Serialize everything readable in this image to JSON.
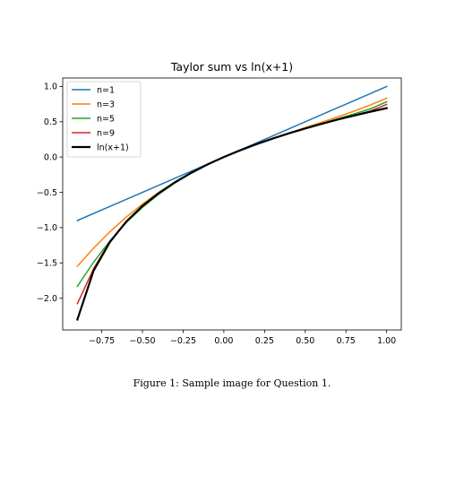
{
  "chart_data": {
    "type": "line",
    "title": "Taylor sum vs ln(x+1)",
    "xlabel": "",
    "ylabel": "",
    "xlim": [
      -0.99,
      1.09
    ],
    "ylim": [
      -2.45,
      1.12
    ],
    "x_ticks": [
      -0.75,
      -0.5,
      -0.25,
      0.0,
      0.25,
      0.5,
      0.75,
      1.0
    ],
    "x_tick_labels": [
      "−0.75",
      "−0.50",
      "−0.25",
      "0.00",
      "0.25",
      "0.50",
      "0.75",
      "1.00"
    ],
    "y_ticks": [
      1.0,
      0.5,
      0.0,
      -0.5,
      -1.0,
      -1.5,
      -2.0
    ],
    "y_tick_labels": [
      "1.0",
      "0.5",
      "0.0",
      "−0.5",
      "−1.0",
      "−1.5",
      "−2.0"
    ],
    "grid": false,
    "legend_position": "top-left",
    "series": [
      {
        "name": "n=1",
        "color": "#1f77b4",
        "line_width": 1.5,
        "x": [
          -0.9,
          1.0
        ],
        "y": [
          -0.9,
          1.0
        ]
      },
      {
        "name": "n=3",
        "color": "#ff7f0e",
        "line_width": 1.5,
        "x": [
          -0.9,
          -0.8,
          -0.7,
          -0.6,
          -0.5,
          -0.4,
          -0.3,
          -0.2,
          -0.1,
          0.0,
          0.1,
          0.2,
          0.3,
          0.4,
          0.5,
          0.6,
          0.7,
          0.8,
          0.9,
          1.0
        ],
        "y": [
          -1.548,
          -1.291,
          -1.059,
          -0.852,
          -0.667,
          -0.501,
          -0.354,
          -0.223,
          -0.105,
          0.0,
          0.095,
          0.183,
          0.264,
          0.341,
          0.417,
          0.492,
          0.569,
          0.651,
          0.738,
          0.833
        ]
      },
      {
        "name": "n=5",
        "color": "#2ca02c",
        "line_width": 1.5,
        "x": [
          -0.9,
          -0.8,
          -0.7,
          -0.6,
          -0.5,
          -0.4,
          -0.3,
          -0.2,
          -0.1,
          0.0,
          0.1,
          0.2,
          0.3,
          0.4,
          0.5,
          0.6,
          0.7,
          0.8,
          0.9,
          1.0
        ],
        "y": [
          -1.832,
          -1.489,
          -1.188,
          -0.93,
          -0.713,
          -0.528,
          -0.367,
          -0.228,
          -0.105,
          0.0,
          0.095,
          0.182,
          0.263,
          0.336,
          0.407,
          0.475,
          0.542,
          0.611,
          0.683,
          0.783
        ]
      },
      {
        "name": "n=9",
        "color": "#d62728",
        "line_width": 1.5,
        "x": [
          -0.9,
          -0.8,
          -0.7,
          -0.6,
          -0.5,
          -0.4,
          -0.3,
          -0.2,
          -0.1,
          0.0,
          0.1,
          0.2,
          0.3,
          0.4,
          0.5,
          0.6,
          0.7,
          0.8,
          0.9,
          1.0
        ],
        "y": [
          -2.078,
          -1.582,
          -1.196,
          -0.916,
          -0.693,
          -0.511,
          -0.357,
          -0.223,
          -0.105,
          0.0,
          0.095,
          0.182,
          0.262,
          0.336,
          0.405,
          0.47,
          0.531,
          0.591,
          0.652,
          0.746
        ]
      },
      {
        "name": "ln(x+1)",
        "color": "#000000",
        "line_width": 2.2,
        "x": [
          -0.9,
          -0.8,
          -0.7,
          -0.6,
          -0.5,
          -0.4,
          -0.3,
          -0.2,
          -0.1,
          0.0,
          0.1,
          0.2,
          0.3,
          0.4,
          0.5,
          0.6,
          0.7,
          0.8,
          0.9,
          1.0
        ],
        "y": [
          -2.303,
          -1.609,
          -1.204,
          -0.916,
          -0.693,
          -0.511,
          -0.357,
          -0.223,
          -0.105,
          0.0,
          0.095,
          0.182,
          0.262,
          0.336,
          0.405,
          0.47,
          0.531,
          0.588,
          0.642,
          0.693
        ]
      }
    ]
  },
  "caption": "Figure 1: Sample image for Question 1."
}
